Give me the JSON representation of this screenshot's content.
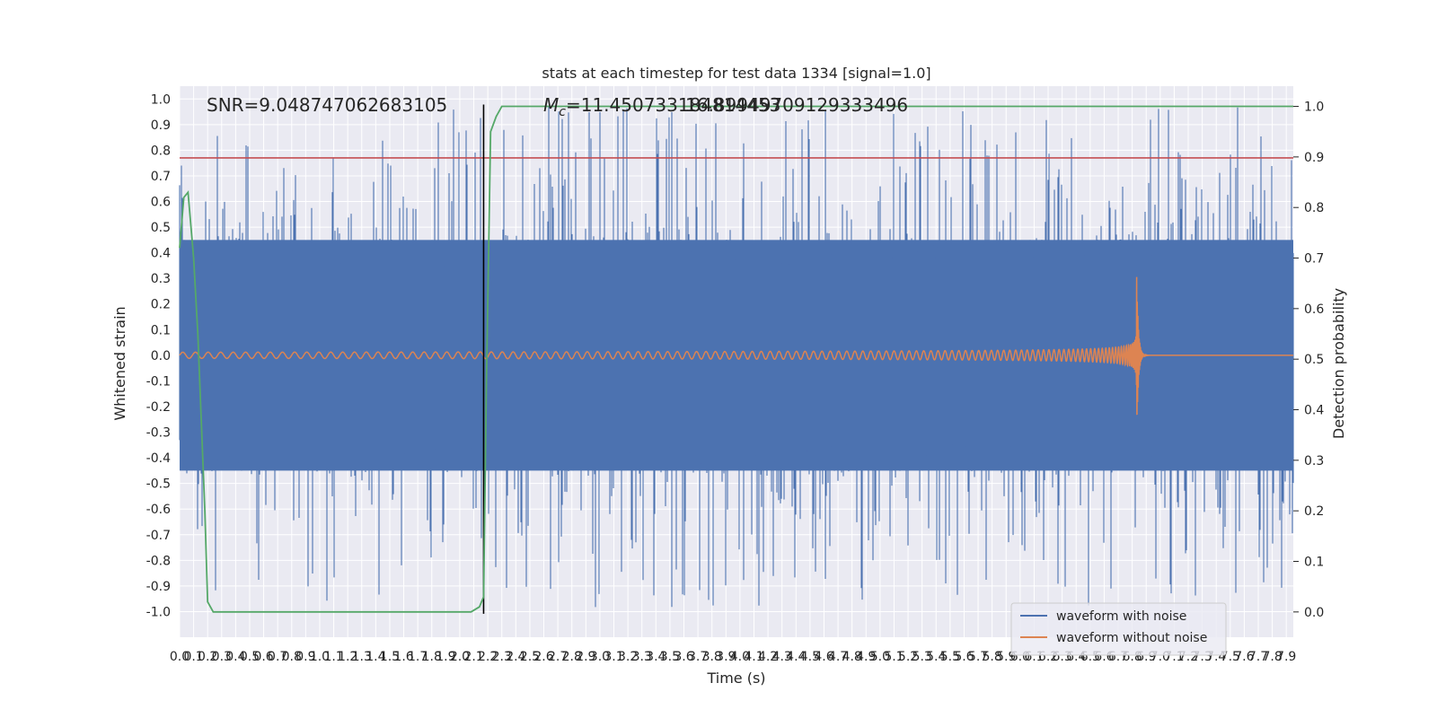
{
  "chart_data": {
    "type": "line",
    "title": "stats at each timestep for test data 1334 [signal=1.0]",
    "xlabel": "Time (s)",
    "ylabel": "Whitened strain",
    "y2label": "Detection probability",
    "xlim": [
      0,
      7.95
    ],
    "ylim": [
      -1.1,
      1.05
    ],
    "y2lim": [
      -0.05,
      1.04
    ],
    "x_ticks": [
      0.0,
      0.1,
      0.2,
      0.3,
      0.4,
      0.5,
      0.6,
      0.7,
      0.8,
      0.9,
      1.0,
      1.1,
      1.2,
      1.3,
      1.4,
      1.5,
      1.6,
      1.7,
      1.8,
      1.9,
      2.0,
      2.1,
      2.2,
      2.3,
      2.4,
      2.5,
      2.6,
      2.7,
      2.8,
      2.9,
      3.0,
      3.1,
      3.2,
      3.3,
      3.4,
      3.5,
      3.6,
      3.7,
      3.8,
      3.9,
      4.0,
      4.1,
      4.2,
      4.3,
      4.4,
      4.5,
      4.6,
      4.7,
      4.8,
      4.9,
      5.0,
      5.1,
      5.2,
      5.3,
      5.4,
      5.5,
      5.6,
      5.7,
      5.8,
      5.9,
      6.0,
      6.1,
      6.2,
      6.3,
      6.4,
      6.5,
      6.6,
      6.7,
      6.8,
      6.9,
      7.0,
      7.1,
      7.2,
      7.3,
      7.4,
      7.5,
      7.6,
      7.7,
      7.8,
      7.9
    ],
    "y_ticks": [
      1.0,
      0.9,
      0.8,
      0.7,
      0.6,
      0.5,
      0.4,
      0.3,
      0.2,
      0.1,
      0.0,
      -0.1,
      -0.2,
      -0.3,
      -0.4,
      -0.5,
      -0.6,
      -0.7,
      -0.8,
      -0.9,
      -1.0
    ],
    "y2_ticks": [
      1.0,
      0.9,
      0.8,
      0.7,
      0.6,
      0.5,
      0.4,
      0.3,
      0.2,
      0.1,
      0.0
    ],
    "annotations": {
      "snr": "SNR=9.048747062683105",
      "mc_symbol": "M",
      "mc_subscript": "c",
      "mc_value": "=11.450733184814453",
      "mc_overlap": "16.89949709129333496"
    },
    "threshold_line": {
      "y": 0.77,
      "color": "#c44e52"
    },
    "event_marker": {
      "x": 2.17,
      "color": "#000000"
    },
    "series": [
      {
        "name": "waveform with noise",
        "color": "#4c72b0",
        "style": "noise",
        "envelope_y": [
          -0.45,
          0.45
        ],
        "peak_max": 0.98,
        "peak_min": -0.99
      },
      {
        "name": "waveform without noise",
        "color": "#dd8452",
        "style": "chirp",
        "merger_x": 6.83,
        "peak": 0.38,
        "start_amp": 0.012
      },
      {
        "name": "",
        "color": "#55a868",
        "axis": "y2",
        "x": [
          0.0,
          0.03,
          0.06,
          0.1,
          0.13,
          0.18,
          0.2,
          0.24,
          0.28,
          0.4,
          1.0,
          2.0,
          2.08,
          2.14,
          2.17,
          2.19,
          2.22,
          2.26,
          2.3,
          3.0,
          5.0,
          7.95
        ],
        "y": [
          0.72,
          0.82,
          0.83,
          0.7,
          0.55,
          0.2,
          0.02,
          0.0,
          0.0,
          0.0,
          0.0,
          0.0,
          0.0,
          0.01,
          0.03,
          0.45,
          0.95,
          0.98,
          1.0,
          1.0,
          1.0,
          1.0
        ]
      }
    ],
    "legend": {
      "placement": "lower-right",
      "entries": [
        "waveform with noise",
        "waveform without noise"
      ]
    },
    "grid": true
  }
}
